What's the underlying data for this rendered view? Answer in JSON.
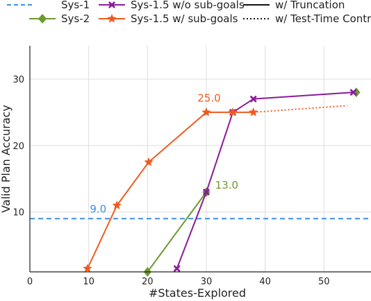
{
  "chart_data": {
    "type": "line",
    "xlabel": "#States-Explored",
    "ylabel": "Valid Plan Accuracy",
    "xlim": [
      0,
      58
    ],
    "ylim": [
      1,
      35
    ],
    "xticks": [
      "0",
      "10",
      "20",
      "30",
      "40",
      "50"
    ],
    "yticks": [
      "10",
      "20",
      "30"
    ],
    "grid": true,
    "legend_position": "top",
    "legend": {
      "sys1": "Sys-1",
      "sys2": "Sys-2",
      "sys15_wo": "Sys-1.5 w/o sub-goals",
      "sys15_w": "Sys-1.5 w/ sub-goals",
      "truncation": "w/ Truncation",
      "ttc": "w/ Test-Time Control"
    },
    "colors": {
      "sys1": "#3a8ee6",
      "sys2": "#6b9a2d",
      "sys15_wo": "#8b1a9a",
      "sys15_w": "#f05a1e",
      "grid": "#dddddd",
      "axis": "#222222"
    },
    "series": [
      {
        "key": "sys1",
        "type": "hline",
        "y": 9.0,
        "style": "dashed"
      },
      {
        "key": "sys2",
        "marker": "diamond",
        "style": "solid",
        "x": [
          20,
          30
        ],
        "y": [
          1,
          13
        ]
      },
      {
        "key": "sys2",
        "marker": "diamond",
        "style": "solid",
        "x": [
          55.5
        ],
        "y": [
          28
        ]
      },
      {
        "key": "sys15_wo",
        "marker": "x",
        "style": "solid",
        "x": [
          25,
          30,
          34.5,
          38,
          55
        ],
        "y": [
          1.5,
          13,
          25,
          27,
          28
        ]
      },
      {
        "key": "sys15_w",
        "marker": "star",
        "style": "solid",
        "x": [
          9.8,
          14.8,
          20.2,
          30,
          34.5,
          38
        ],
        "y": [
          1.5,
          11,
          17.5,
          25,
          25,
          25
        ]
      },
      {
        "key": "sys15_w",
        "marker": "none",
        "style": "dotted",
        "x": [
          38,
          54
        ],
        "y": [
          25,
          26
        ]
      }
    ],
    "annotations": [
      {
        "text": "9.0",
        "x": 10.2,
        "y": 9.9,
        "color_key": "sys1"
      },
      {
        "text": "13.0",
        "x": 31.5,
        "y": 13.5,
        "color_key": "sys2"
      },
      {
        "text": "25.0",
        "x": 28.5,
        "y": 26.6,
        "color_key": "sys15_w"
      }
    ]
  }
}
